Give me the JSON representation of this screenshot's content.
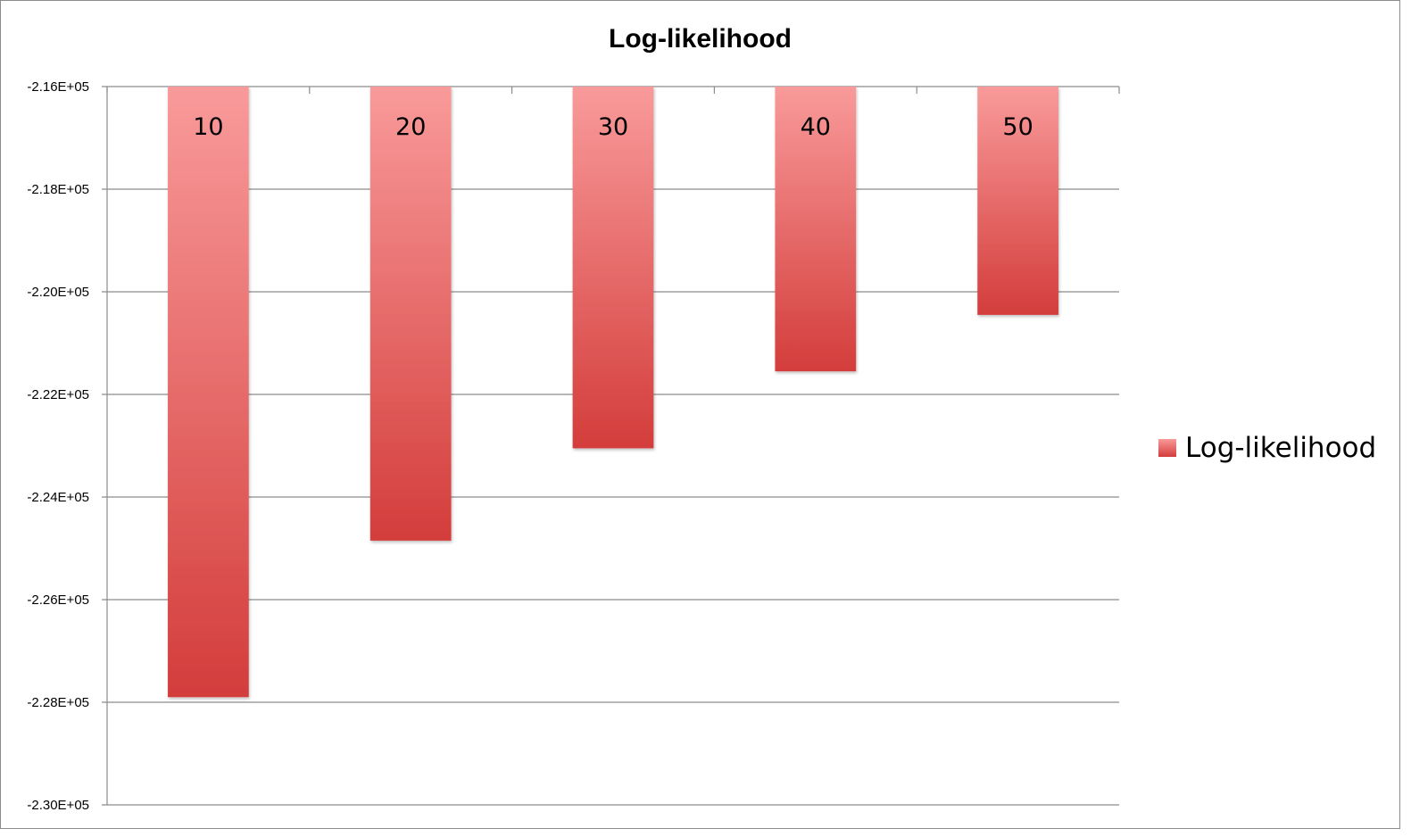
{
  "chart_data": {
    "type": "bar",
    "title": "Log-likelihood",
    "categories": [
      "10",
      "20",
      "30",
      "40",
      "50"
    ],
    "series": [
      {
        "name": "Log-likelihood",
        "values": [
          -227900,
          -224850,
          -223050,
          -221550,
          -220450
        ]
      }
    ],
    "data_labels": [
      "10",
      "20",
      "30",
      "40",
      "50"
    ],
    "ylim": [
      -230000,
      -216000
    ],
    "yticks": [
      -216000,
      -218000,
      -220000,
      -222000,
      -224000,
      -226000,
      -228000,
      -230000
    ],
    "ytick_labels": [
      "-2.16E+05",
      "-2.18E+05",
      "-2.20E+05",
      "-2.22E+05",
      "-2.24E+05",
      "-2.26E+05",
      "-2.28E+05",
      "-2.30E+05"
    ],
    "bars_hang_from": "top",
    "grid": true,
    "legend_position": "right",
    "colors": {
      "bar_top": "#f99a9a",
      "bar_bottom": "#d33d3b",
      "grid": "#8c8c8c"
    }
  }
}
